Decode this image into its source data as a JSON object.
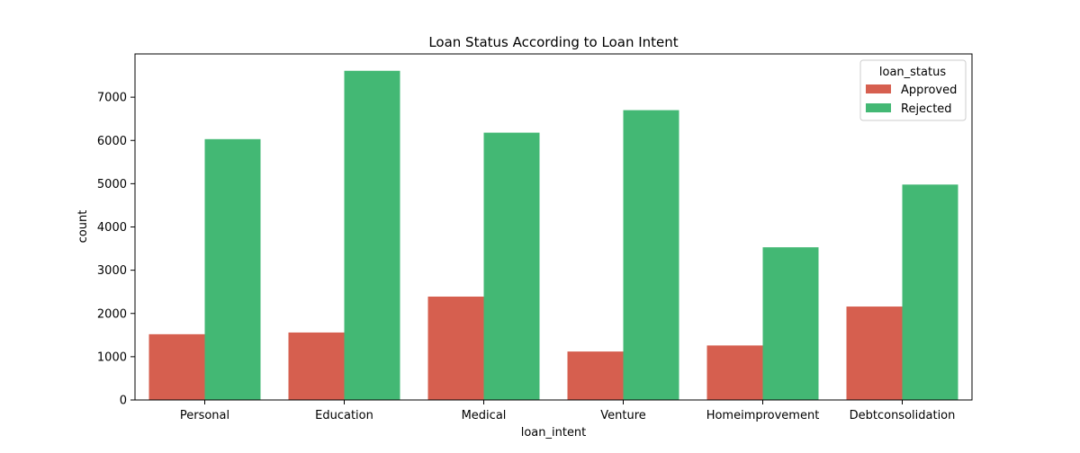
{
  "chart_data": {
    "type": "bar",
    "title": "Loan Status According to Loan Intent",
    "xlabel": "loan_intent",
    "ylabel": "count",
    "categories": [
      "Personal",
      "Education",
      "Medical",
      "Venture",
      "Homeimprovement",
      "Debtconsolidation"
    ],
    "series": [
      {
        "name": "Approved",
        "color": "#d65f4f",
        "values": [
          1520,
          1560,
          2390,
          1120,
          1260,
          2160
        ]
      },
      {
        "name": "Rejected",
        "color": "#43b874",
        "values": [
          6030,
          7610,
          6180,
          6700,
          3530,
          4980
        ]
      }
    ],
    "ylim": [
      0,
      8000
    ],
    "yticks": [
      0,
      1000,
      2000,
      3000,
      4000,
      5000,
      6000,
      7000
    ],
    "legend": {
      "title": "loan_status",
      "placement": "top-right"
    },
    "grid": false
  }
}
